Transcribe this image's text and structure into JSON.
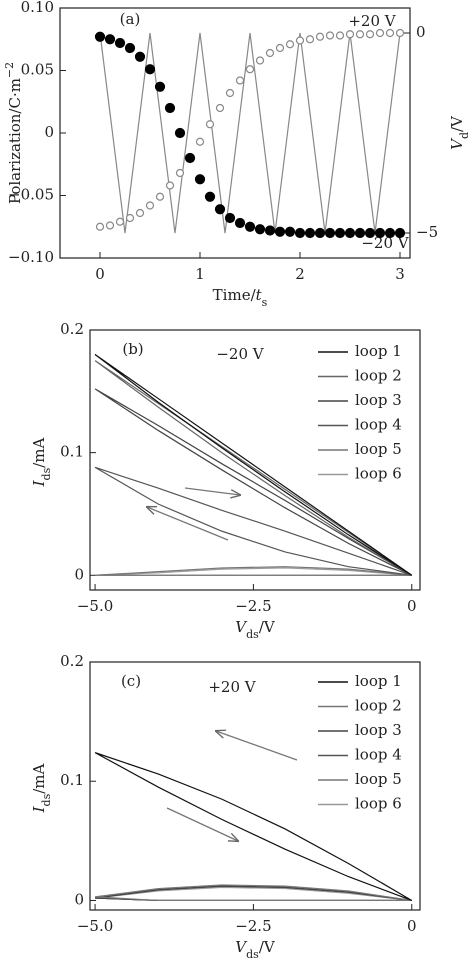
{
  "chart_data": [
    {
      "type": "line",
      "panel_label": "(a)",
      "xlabel": [
        {
          "text": "Time/"
        },
        {
          "italic": "t"
        },
        {
          "sub": "s"
        }
      ],
      "ylabel": [
        {
          "text": "Polarization/C·m"
        },
        {
          "sup": "−2"
        }
      ],
      "y2label": [
        {
          "italic": "V"
        },
        {
          "sub": "d"
        },
        {
          "text": "/V"
        }
      ],
      "annotations": [
        "+20 V",
        "−20 V"
      ],
      "xlim": [
        -0.4,
        3.1
      ],
      "xticks": [
        0,
        1,
        2,
        3
      ],
      "ylim": [
        -0.1,
        0.1
      ],
      "yticks": [
        {
          "value": -0.1,
          "label": "−0.10"
        },
        {
          "value": -0.05,
          "label": "−0.05"
        },
        0,
        {
          "value": 0.05,
          "label": "0.05"
        },
        {
          "value": 0.1,
          "label": "0.10"
        }
      ],
      "y2lim": [
        -5.625,
        0.625
      ],
      "y2ticks": [
        {
          "value": -5,
          "label": "−5"
        },
        0
      ],
      "series": [
        {
          "color": "#888888",
          "axis": "y2",
          "x": [
            0,
            0.25,
            0.5,
            0.75,
            1,
            1.25,
            1.5,
            1.75,
            2,
            2.25,
            2.5,
            2.75,
            3
          ],
          "values": [
            0,
            -5,
            0,
            -5,
            0,
            -5,
            0,
            -5,
            0,
            -5,
            0,
            -5,
            0
          ]
        },
        {
          "color": "#888888",
          "marker": "hollow",
          "x": [
            0,
            0.1,
            0.2,
            0.3,
            0.4,
            0.5,
            0.6,
            0.7,
            0.8,
            0.9,
            1,
            1.1,
            1.2,
            1.3,
            1.4,
            1.5,
            1.6,
            1.7,
            1.8,
            1.9,
            2,
            2.1,
            2.2,
            2.3,
            2.4,
            2.5,
            2.6,
            2.7,
            2.8,
            2.9,
            3
          ],
          "values": [
            -0.075,
            -0.074,
            -0.071,
            -0.068,
            -0.064,
            -0.058,
            -0.051,
            -0.042,
            -0.032,
            -0.02,
            -0.007,
            0.007,
            0.02,
            0.032,
            0.042,
            0.051,
            0.058,
            0.064,
            0.068,
            0.071,
            0.074,
            0.075,
            0.077,
            0.078,
            0.078,
            0.079,
            0.079,
            0.079,
            0.08,
            0.08,
            0.08
          ]
        },
        {
          "color": "#000000",
          "marker": "filled",
          "x": [
            0,
            0.1,
            0.2,
            0.3,
            0.4,
            0.5,
            0.6,
            0.7,
            0.8,
            0.9,
            1,
            1.1,
            1.2,
            1.3,
            1.4,
            1.5,
            1.6,
            1.7,
            1.8,
            1.9,
            2,
            2.1,
            2.2,
            2.3,
            2.4,
            2.5,
            2.6,
            2.7,
            2.8,
            2.9,
            3
          ],
          "values": [
            0.077,
            0.075,
            0.072,
            0.068,
            0.061,
            0.051,
            0.037,
            0.02,
            0,
            -0.02,
            -0.037,
            -0.051,
            -0.061,
            -0.068,
            -0.072,
            -0.075,
            -0.077,
            -0.078,
            -0.079,
            -0.079,
            -0.08,
            -0.08,
            -0.08,
            -0.08,
            -0.08,
            -0.08,
            -0.08,
            -0.08,
            -0.08,
            -0.08,
            -0.08
          ]
        }
      ]
    },
    {
      "type": "line",
      "panel_label": "(b)",
      "xlabel": [
        {
          "italic": "V"
        },
        {
          "sub": "ds"
        },
        {
          "text": "/V"
        }
      ],
      "ylabel": [
        {
          "italic": "I"
        },
        {
          "sub": "ds"
        },
        {
          "text": "/mA"
        }
      ],
      "annotations": [
        "−20 V"
      ],
      "legend": "upper right",
      "xlim": [
        -5.08,
        0.13
      ],
      "xticks": [
        {
          "value": -5,
          "label": "−5.0"
        },
        {
          "value": -2.5,
          "label": "−2.5"
        },
        0
      ],
      "ylim": [
        -0.012,
        0.2
      ],
      "yticks": [
        0,
        0.1,
        0.2
      ],
      "series": [
        {
          "name": "loop 6",
          "color": "#999999",
          "x": [
            0,
            -1,
            -2,
            -3,
            -4,
            -5,
            -4,
            -3,
            -2,
            -1,
            0
          ],
          "values": [
            0,
            0.004,
            0.006,
            0.005,
            0.002,
            0,
            0,
            0,
            0,
            0,
            0
          ]
        },
        {
          "name": "loop 5",
          "color": "#777777",
          "x": [
            0,
            -1,
            -2,
            -3,
            -4,
            -5,
            -4,
            -3,
            -2,
            -1,
            0
          ],
          "values": [
            0,
            0.005,
            0.007,
            0.006,
            0.003,
            0,
            0,
            0,
            0,
            0,
            0
          ]
        },
        {
          "name": "loop 4",
          "color": "#555555",
          "x": [
            0,
            -1,
            -2,
            -3,
            -4,
            -5,
            -4,
            -3,
            -2,
            -1,
            0
          ],
          "values": [
            0,
            0.018,
            0.036,
            0.053,
            0.071,
            0.088,
            0.058,
            0.036,
            0.019,
            0.007,
            0
          ]
        },
        {
          "name": "loop 3",
          "color": "#444444",
          "x": [
            0,
            -1,
            -2,
            -3,
            -4,
            -5,
            -4,
            -3,
            -2,
            -1,
            0
          ],
          "values": [
            0,
            0.03,
            0.061,
            0.091,
            0.122,
            0.152,
            0.118,
            0.086,
            0.055,
            0.026,
            0
          ]
        },
        {
          "name": "loop 2",
          "color": "#666666",
          "x": [
            0,
            -1,
            -2,
            -3,
            -4,
            -5,
            -4,
            -3,
            -2,
            -1,
            0
          ],
          "values": [
            0,
            0.035,
            0.07,
            0.105,
            0.14,
            0.175,
            0.137,
            0.1,
            0.065,
            0.031,
            0
          ]
        },
        {
          "name": "loop 1",
          "color": "#111111",
          "x": [
            0,
            -1,
            -2,
            -3,
            -4,
            -5,
            -4,
            -3,
            -2,
            -1,
            0
          ],
          "values": [
            0,
            0.036,
            0.072,
            0.108,
            0.144,
            0.18,
            0.141,
            0.104,
            0.068,
            0.033,
            0
          ]
        }
      ]
    },
    {
      "type": "line",
      "panel_label": "(c)",
      "xlabel": [
        {
          "italic": "V"
        },
        {
          "sub": "ds"
        },
        {
          "text": "/V"
        }
      ],
      "ylabel": [
        {
          "italic": "I"
        },
        {
          "sub": "ds"
        },
        {
          "text": "/mA"
        }
      ],
      "annotations": [
        "+20 V"
      ],
      "legend": "upper right",
      "xlim": [
        -5.08,
        0.13
      ],
      "xticks": [
        {
          "value": -5,
          "label": "−5.0"
        },
        {
          "value": -2.5,
          "label": "−2.5"
        },
        0
      ],
      "ylim": [
        -0.008,
        0.2
      ],
      "yticks": [
        0,
        0.1,
        0.2
      ],
      "series": [
        {
          "name": "loop 6",
          "color": "#999999",
          "x": [
            0,
            -1,
            -2,
            -3,
            -4,
            -5,
            -4,
            -3,
            -2,
            -1,
            0
          ],
          "values": [
            0,
            0.006,
            0.01,
            0.011,
            0.008,
            0.002,
            0,
            0,
            0,
            0,
            0
          ]
        },
        {
          "name": "loop 5",
          "color": "#777777",
          "x": [
            0,
            -1,
            -2,
            -3,
            -4,
            -5,
            -4,
            -3,
            -2,
            -1,
            0
          ],
          "values": [
            0,
            0.007,
            0.011,
            0.012,
            0.009,
            0.002,
            0,
            0,
            0,
            0,
            0
          ]
        },
        {
          "name": "loop 4",
          "color": "#555555",
          "x": [
            0,
            -1,
            -2,
            -3,
            -4,
            -5,
            -4,
            -3,
            -2,
            -1,
            0
          ],
          "values": [
            0,
            0.007,
            0.011,
            0.012,
            0.009,
            0.002,
            0,
            0,
            0,
            0,
            0
          ]
        },
        {
          "name": "loop 3",
          "color": "#444444",
          "x": [
            0,
            -1,
            -2,
            -3,
            -4,
            -5,
            -4,
            -3,
            -2,
            -1,
            0
          ],
          "values": [
            0,
            0.007,
            0.011,
            0.012,
            0.009,
            0.002,
            0,
            0,
            0,
            0,
            0
          ]
        },
        {
          "name": "loop 2",
          "color": "#777777",
          "x": [
            0,
            -1,
            -2,
            -3,
            -4,
            -5,
            -4,
            -3,
            -2,
            -1,
            0
          ],
          "values": [
            0,
            0.008,
            0.012,
            0.013,
            0.01,
            0.003,
            0,
            0,
            0,
            0,
            0
          ]
        },
        {
          "name": "loop 1",
          "color": "#111111",
          "x": [
            0,
            -1,
            -2,
            -3,
            -4,
            -5,
            -4,
            -3,
            -2,
            -1,
            0
          ],
          "values": [
            0,
            0.031,
            0.06,
            0.085,
            0.106,
            0.124,
            0.095,
            0.068,
            0.043,
            0.02,
            0
          ]
        }
      ]
    }
  ]
}
